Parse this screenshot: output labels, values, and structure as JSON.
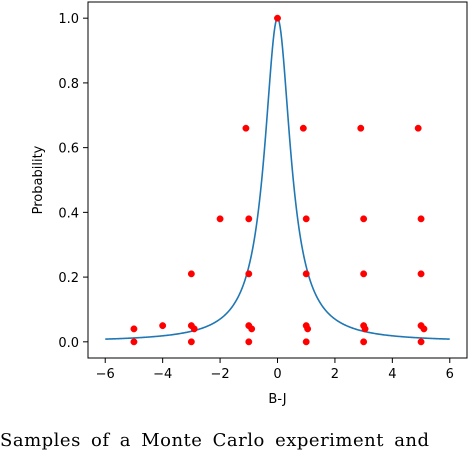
{
  "chart_data": {
    "type": "scatter",
    "title": "",
    "xlabel": "B-J",
    "ylabel": "Probability",
    "xlim": [
      -6.6,
      6.6
    ],
    "ylim": [
      -0.05,
      1.05
    ],
    "xticks": [
      -6,
      -4,
      -2,
      0,
      2,
      4,
      6
    ],
    "yticks": [
      0.0,
      0.2,
      0.4,
      0.6,
      0.8,
      1.0
    ],
    "xtick_labels": [
      "−6",
      "−4",
      "−2",
      "0",
      "2",
      "4",
      "6"
    ],
    "ytick_labels": [
      "0.0",
      "0.2",
      "0.4",
      "0.6",
      "0.8",
      "1.0"
    ],
    "grid": false,
    "series": [
      {
        "kind": "points",
        "color": "#ff0000",
        "points": [
          {
            "x": 0.0,
            "y": 1.0
          },
          {
            "x": -1.1,
            "y": 0.66
          },
          {
            "x": 0.9,
            "y": 0.66
          },
          {
            "x": 2.9,
            "y": 0.66
          },
          {
            "x": 4.9,
            "y": 0.66
          },
          {
            "x": -2.0,
            "y": 0.38
          },
          {
            "x": -1.0,
            "y": 0.38
          },
          {
            "x": 1.0,
            "y": 0.38
          },
          {
            "x": 3.0,
            "y": 0.38
          },
          {
            "x": 5.0,
            "y": 0.38
          },
          {
            "x": -3.0,
            "y": 0.21
          },
          {
            "x": -1.0,
            "y": 0.21
          },
          {
            "x": 1.0,
            "y": 0.21
          },
          {
            "x": 3.0,
            "y": 0.21
          },
          {
            "x": 5.0,
            "y": 0.21
          },
          {
            "x": -5.0,
            "y": 0.04
          },
          {
            "x": -4.0,
            "y": 0.05
          },
          {
            "x": -3.0,
            "y": 0.05
          },
          {
            "x": -2.9,
            "y": 0.04
          },
          {
            "x": -1.0,
            "y": 0.05
          },
          {
            "x": -0.9,
            "y": 0.04
          },
          {
            "x": 1.0,
            "y": 0.05
          },
          {
            "x": 1.05,
            "y": 0.04
          },
          {
            "x": 3.0,
            "y": 0.05
          },
          {
            "x": 3.05,
            "y": 0.04
          },
          {
            "x": 5.0,
            "y": 0.05
          },
          {
            "x": 5.1,
            "y": 0.04
          },
          {
            "x": -5.0,
            "y": 0.0
          },
          {
            "x": -3.0,
            "y": 0.0
          },
          {
            "x": -1.0,
            "y": 0.0
          },
          {
            "x": 1.0,
            "y": 0.0
          },
          {
            "x": 3.0,
            "y": 0.0
          },
          {
            "x": 5.0,
            "y": 0.0
          }
        ]
      },
      {
        "kind": "curve",
        "color": "#1f77b4",
        "function": "lorentzian",
        "gamma": 0.55,
        "x_range": [
          -6,
          6
        ]
      }
    ]
  },
  "caption": "Samples of a Monte Carlo experiment and"
}
